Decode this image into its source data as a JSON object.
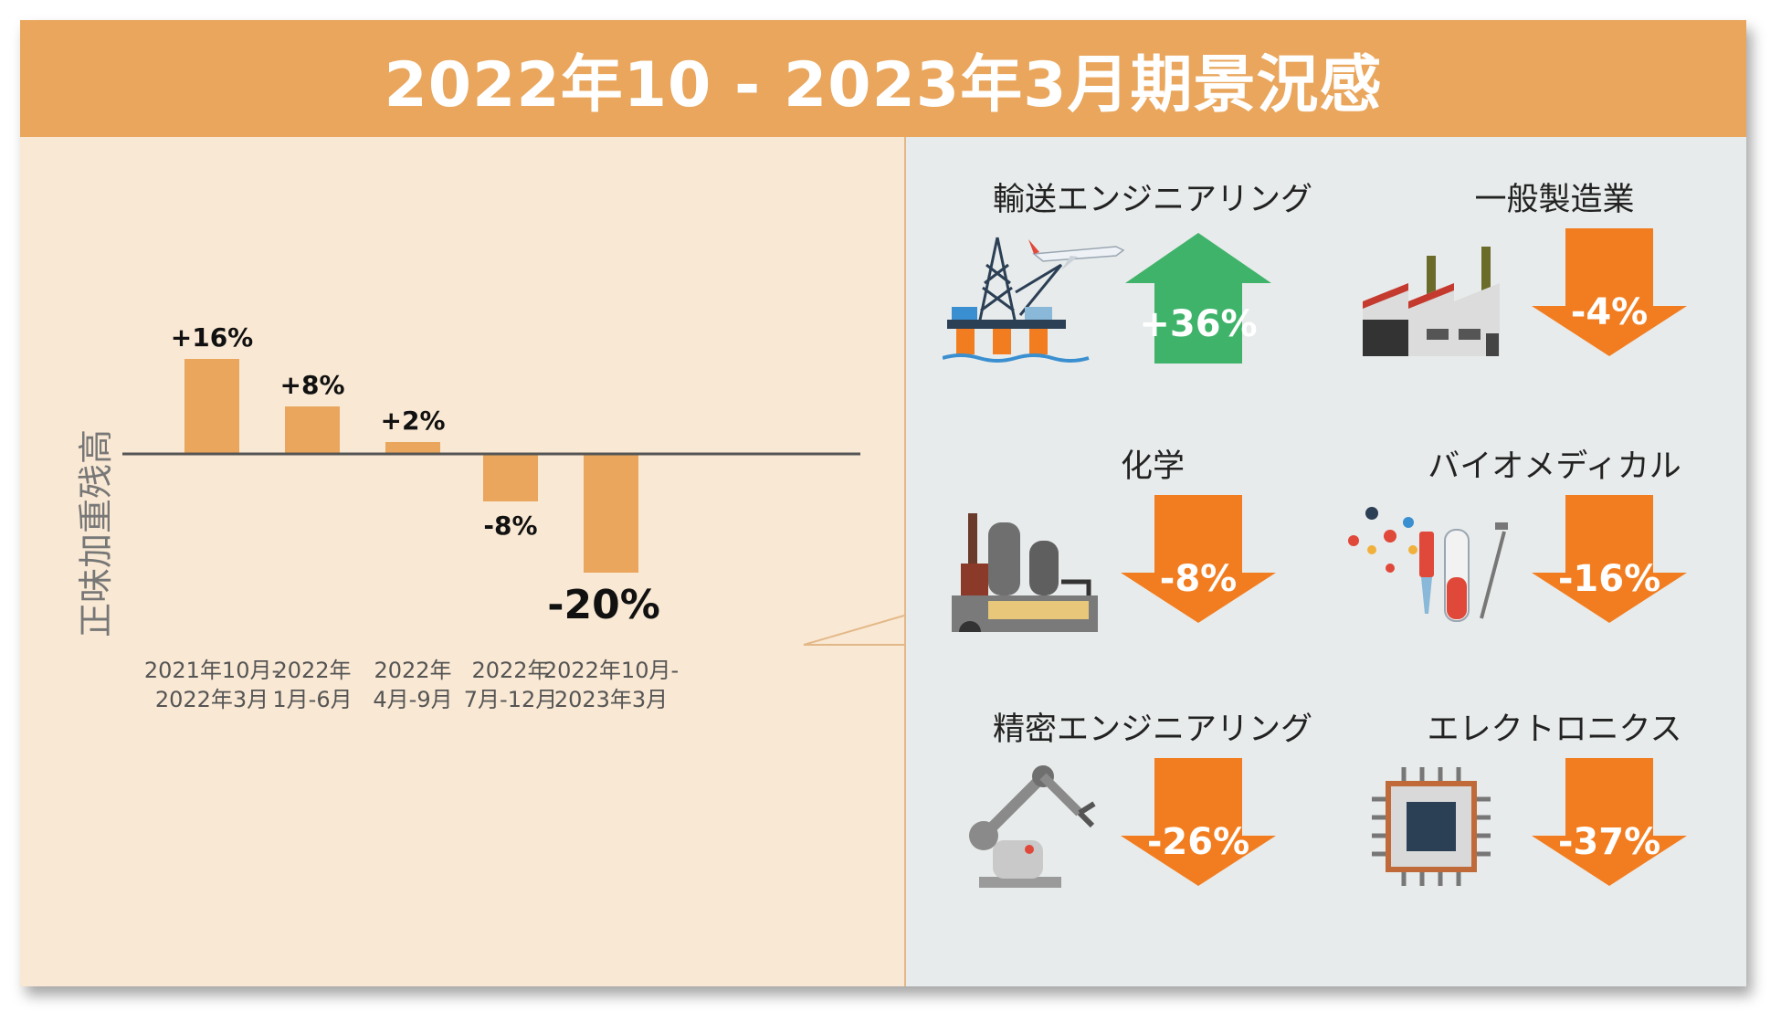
{
  "title": "2022年10 - 2023年3月期景況感",
  "colors": {
    "header": "#e9a65c",
    "bar": "#e9a65c",
    "left_bg": "#f9e8d3",
    "right_bg": "#e8ebeb",
    "up_arrow": "#3fb36a",
    "down_arrow": "#f27d20"
  },
  "chart_data": {
    "type": "bar",
    "ylabel": "正味加重残高",
    "categories": [
      "2021年10月-\n2022年3月",
      "2022年\n1月-6月",
      "2022年\n4月-9月",
      "2022年\n7月-12月",
      "2022年10月-\n2023年3月"
    ],
    "values": [
      16,
      8,
      2,
      -8,
      -20
    ],
    "data_labels": [
      "+16%",
      "+8%",
      "+2%",
      "-8%",
      "-20%"
    ],
    "unit": "%",
    "xlabel": "",
    "grid": false,
    "legend": "none"
  },
  "industries": [
    {
      "name": "輸送エンジニアリング",
      "value": "+36%",
      "direction": "up",
      "icon": "oil-rig-and-airplane-icon"
    },
    {
      "name": "一般製造業",
      "value": "-4%",
      "direction": "down",
      "icon": "factory-icon"
    },
    {
      "name": "化学",
      "value": "-8%",
      "direction": "down",
      "icon": "chemical-plant-icon"
    },
    {
      "name": "バイオメディカル",
      "value": "-16%",
      "direction": "down",
      "icon": "test-tubes-syringe-icon"
    },
    {
      "name": "精密エンジニアリング",
      "value": "-26%",
      "direction": "down",
      "icon": "robot-arm-icon"
    },
    {
      "name": "エレクトロニクス",
      "value": "-37%",
      "direction": "down",
      "icon": "microchip-icon"
    }
  ]
}
